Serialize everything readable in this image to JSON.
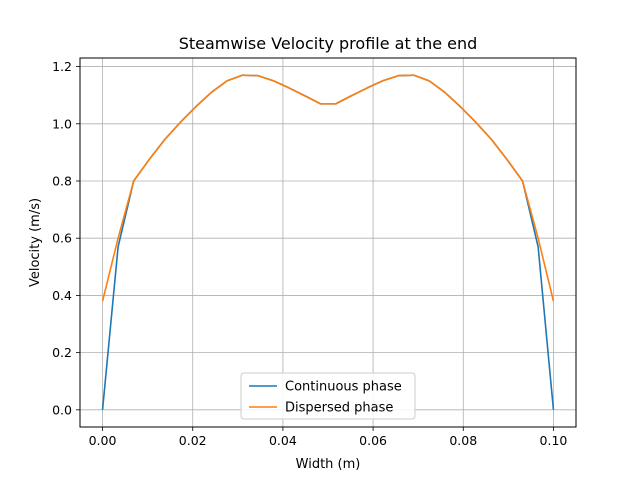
{
  "chart_data": {
    "type": "line",
    "title": "Steamwise Velocity profile at the end",
    "xlabel": "Width (m)",
    "ylabel": "Velocity (m/s)",
    "xlim": [
      -0.005,
      0.105
    ],
    "ylim": [
      -0.06,
      1.23
    ],
    "xticks": [
      0.0,
      0.02,
      0.04,
      0.06,
      0.08,
      0.1
    ],
    "xtick_labels": [
      "0.00",
      "0.02",
      "0.04",
      "0.06",
      "0.08",
      "0.10"
    ],
    "yticks": [
      0.0,
      0.2,
      0.4,
      0.6,
      0.8,
      1.0,
      1.2
    ],
    "ytick_labels": [
      "0.0",
      "0.2",
      "0.4",
      "0.6",
      "0.8",
      "1.0",
      "1.2"
    ],
    "grid": true,
    "legend_position": "lower center",
    "series": [
      {
        "name": "Continuous phase",
        "color": "#1f77b4",
        "x": [
          0.0,
          0.00345,
          0.0069,
          0.01035,
          0.0138,
          0.01725,
          0.0207,
          0.02415,
          0.0276,
          0.03105,
          0.0345,
          0.03795,
          0.0414,
          0.04485,
          0.0483,
          0.05175,
          0.0552,
          0.05865,
          0.0621,
          0.06555,
          0.069,
          0.07245,
          0.0759,
          0.07935,
          0.0828,
          0.08625,
          0.0897,
          0.09315,
          0.0966,
          0.1
        ],
        "y": [
          0.0,
          0.57,
          0.8,
          0.875,
          0.945,
          1.005,
          1.06,
          1.11,
          1.15,
          1.17,
          1.168,
          1.15,
          1.125,
          1.098,
          1.07,
          1.07,
          1.098,
          1.125,
          1.15,
          1.168,
          1.17,
          1.15,
          1.11,
          1.06,
          1.005,
          0.945,
          0.875,
          0.8,
          0.57,
          0.0
        ]
      },
      {
        "name": "Dispersed phase",
        "color": "#ff7f0e",
        "x": [
          0.0,
          0.00345,
          0.0069,
          0.01035,
          0.0138,
          0.01725,
          0.0207,
          0.02415,
          0.0276,
          0.03105,
          0.0345,
          0.03795,
          0.0414,
          0.04485,
          0.0483,
          0.05175,
          0.0552,
          0.05865,
          0.0621,
          0.06555,
          0.069,
          0.07245,
          0.0759,
          0.07935,
          0.0828,
          0.08625,
          0.0897,
          0.09315,
          0.0966,
          0.1
        ],
        "y": [
          0.38,
          0.6,
          0.8,
          0.875,
          0.945,
          1.005,
          1.06,
          1.11,
          1.15,
          1.17,
          1.168,
          1.15,
          1.125,
          1.098,
          1.07,
          1.07,
          1.098,
          1.125,
          1.15,
          1.168,
          1.17,
          1.15,
          1.11,
          1.06,
          1.005,
          0.945,
          0.875,
          0.8,
          0.6,
          0.38
        ]
      }
    ]
  }
}
